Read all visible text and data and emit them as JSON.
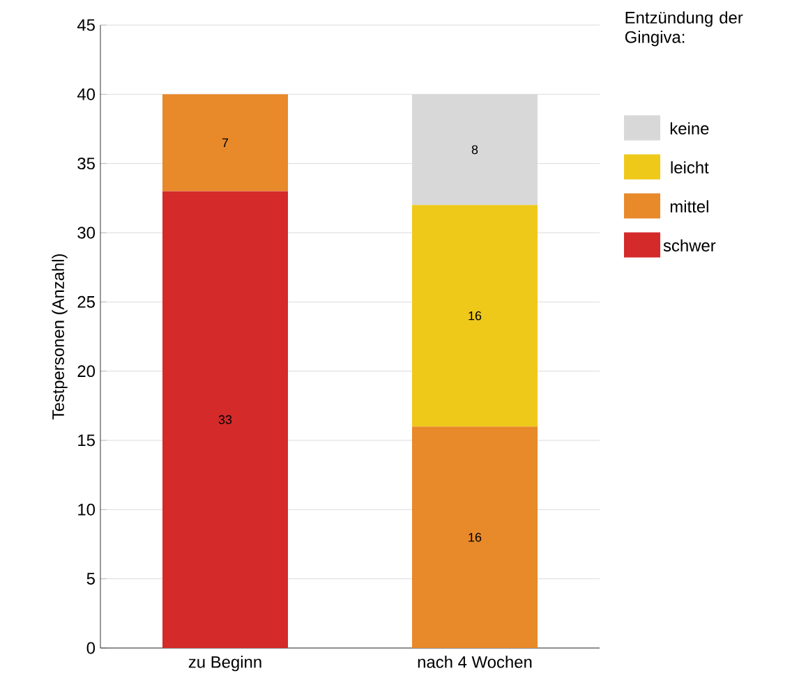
{
  "chart_data": {
    "type": "bar",
    "stacked": true,
    "ylabel": "Testpersonen (Anzahl)",
    "legend_title": "Entzündung der Gingiva:",
    "categories": [
      "zu Beginn",
      "nach 4 Wochen"
    ],
    "series": [
      {
        "name": "schwer",
        "color": "#d42a2a",
        "values": [
          33,
          null
        ]
      },
      {
        "name": "mittel",
        "color": "#e8892a",
        "values": [
          7,
          16
        ]
      },
      {
        "name": "leicht",
        "color": "#eec91a",
        "values": [
          null,
          16
        ]
      },
      {
        "name": "keine",
        "color": "#d8d8d8",
        "values": [
          null,
          8
        ]
      }
    ],
    "ylim": [
      0,
      45
    ],
    "yticks": [
      0,
      5,
      10,
      15,
      20,
      25,
      30,
      35,
      40,
      45
    ],
    "grid": "y",
    "legend": "top right",
    "data_labels": true
  }
}
